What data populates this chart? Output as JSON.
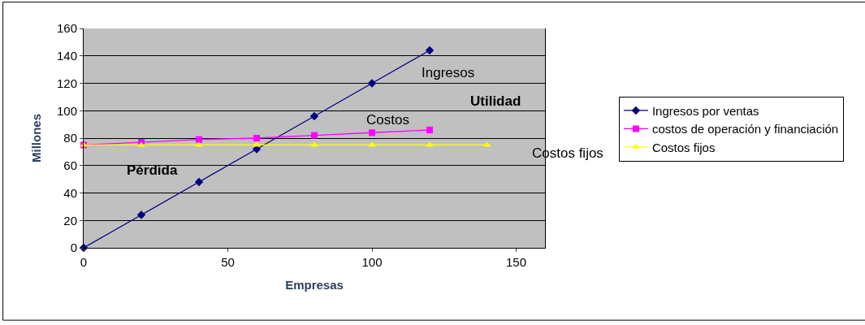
{
  "chart_data": {
    "type": "line",
    "xlabel": "Empresas",
    "ylabel": "Millones",
    "x": [
      0,
      20,
      40,
      60,
      80,
      100,
      120
    ],
    "series": [
      {
        "name": "Ingresos por ventas",
        "color": "#000080",
        "marker": "diamond",
        "values": [
          0,
          24,
          48,
          72,
          96,
          120,
          144
        ]
      },
      {
        "name": "costos de operación y financiación",
        "color": "#ff00ff",
        "marker": "square",
        "values": [
          75,
          77,
          79,
          80,
          82,
          84,
          86
        ]
      },
      {
        "name": "Costos fijos",
        "color": "#ffff00",
        "marker": "triangle",
        "x": [
          0,
          20,
          40,
          60,
          80,
          100,
          120,
          140
        ],
        "values": [
          75,
          75,
          75,
          75,
          75,
          75,
          75,
          75
        ]
      }
    ],
    "annotations": [
      "Ingresos",
      "Costos",
      "Costos fijos",
      "Utilidad",
      "Pérdida"
    ],
    "xlim": [
      0,
      160
    ],
    "xticks": [
      0,
      50,
      100,
      150
    ],
    "ylim": [
      0,
      160
    ],
    "yticks": [
      0,
      20,
      40,
      60,
      80,
      100,
      120,
      140,
      160
    ],
    "grid": "y",
    "legend": "right",
    "line_style": "solid"
  }
}
